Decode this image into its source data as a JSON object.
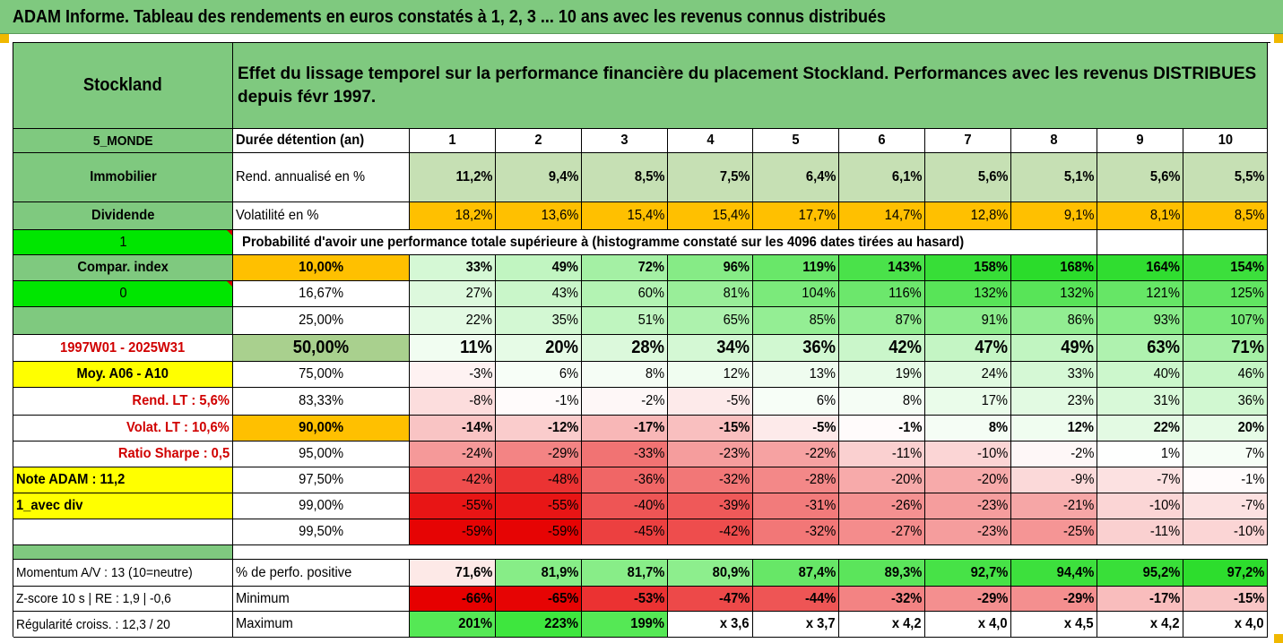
{
  "title": "ADAM Informe. Tableau des rendements en euros constatés à 1, 2, 3 ... 10 ans avec les revenus connus distribués",
  "header": {
    "name": "Stockland",
    "description": "Effet du lissage temporel sur la performance financière du placement Stockland. Performances avec les revenus DISTRIBUES depuis févr 1997."
  },
  "left": {
    "region": "5_MONDE",
    "sector": "Immobilier",
    "dividend": "Dividende",
    "flag1": "1",
    "compar_index": "Compar. index",
    "flag0": "0",
    "period": "1997W01 - 2025W31",
    "moy": "Moy. A06 - A10",
    "rend_lt": "Rend. LT :   5,6%",
    "volat_lt": "Volat. LT :   10,6%",
    "sharpe": "Ratio Sharpe :   0,5",
    "note": "Note ADAM : 11,2",
    "avec_div": "1_avec div",
    "momentum": "Momentum A/V : 13 (10=neutre)",
    "zscore": "Z-score 10 s  | RE : 1,9 | -0,6",
    "regularite": "Régularité croiss. : 12,3 / 20"
  },
  "labels": {
    "duree": "Durée détention (an)",
    "rend": "Rend. annualisé en %",
    "volat": "Volatilité en %",
    "proba": "Probabilité d'avoir une performance totale supérieure à (histogramme constaté sur les 4096 dates tirées au hasard)",
    "perfo_pos": "% de perfo. positive",
    "minimum": "Minimum",
    "maximum": "Maximum"
  },
  "years": [
    "1",
    "2",
    "3",
    "4",
    "5",
    "6",
    "7",
    "8",
    "9",
    "10"
  ],
  "rend": [
    "11,2%",
    "9,4%",
    "8,5%",
    "7,5%",
    "6,4%",
    "6,1%",
    "5,6%",
    "5,1%",
    "5,6%",
    "5,5%"
  ],
  "volat": [
    "18,2%",
    "13,6%",
    "15,4%",
    "15,4%",
    "17,7%",
    "14,7%",
    "12,8%",
    "9,1%",
    "8,1%",
    "8,5%"
  ],
  "quantiles": [
    {
      "label": "10,00%",
      "values": [
        "33%",
        "49%",
        "72%",
        "96%",
        "119%",
        "143%",
        "158%",
        "168%",
        "164%",
        "154%"
      ]
    },
    {
      "label": "16,67%",
      "values": [
        "27%",
        "43%",
        "60%",
        "81%",
        "104%",
        "116%",
        "132%",
        "132%",
        "121%",
        "125%"
      ]
    },
    {
      "label": "25,00%",
      "values": [
        "22%",
        "35%",
        "51%",
        "65%",
        "85%",
        "87%",
        "91%",
        "86%",
        "93%",
        "107%"
      ]
    },
    {
      "label": "50,00%",
      "values": [
        "11%",
        "20%",
        "28%",
        "34%",
        "36%",
        "42%",
        "47%",
        "49%",
        "63%",
        "71%"
      ]
    },
    {
      "label": "75,00%",
      "values": [
        "-3%",
        "6%",
        "8%",
        "12%",
        "13%",
        "19%",
        "24%",
        "33%",
        "40%",
        "46%"
      ]
    },
    {
      "label": "83,33%",
      "values": [
        "-8%",
        "-1%",
        "-2%",
        "-5%",
        "6%",
        "8%",
        "17%",
        "23%",
        "31%",
        "36%"
      ]
    },
    {
      "label": "90,00%",
      "values": [
        "-14%",
        "-12%",
        "-17%",
        "-15%",
        "-5%",
        "-1%",
        "8%",
        "12%",
        "22%",
        "20%"
      ]
    },
    {
      "label": "95,00%",
      "values": [
        "-24%",
        "-29%",
        "-33%",
        "-23%",
        "-22%",
        "-11%",
        "-10%",
        "-2%",
        "1%",
        "7%"
      ]
    },
    {
      "label": "97,50%",
      "values": [
        "-42%",
        "-48%",
        "-36%",
        "-32%",
        "-28%",
        "-20%",
        "-20%",
        "-9%",
        "-7%",
        "-1%"
      ]
    },
    {
      "label": "99,00%",
      "values": [
        "-55%",
        "-55%",
        "-40%",
        "-39%",
        "-31%",
        "-26%",
        "-23%",
        "-21%",
        "-10%",
        "-7%"
      ]
    },
    {
      "label": "99,50%",
      "values": [
        "-59%",
        "-59%",
        "-45%",
        "-42%",
        "-32%",
        "-27%",
        "-23%",
        "-25%",
        "-11%",
        "-10%"
      ]
    }
  ],
  "perfo_pos": [
    "71,6%",
    "81,9%",
    "81,7%",
    "80,9%",
    "87,4%",
    "89,3%",
    "92,7%",
    "94,4%",
    "95,2%",
    "97,2%"
  ],
  "minimum": [
    "-66%",
    "-65%",
    "-53%",
    "-47%",
    "-44%",
    "-32%",
    "-29%",
    "-29%",
    "-17%",
    "-15%"
  ],
  "maximum": [
    "201%",
    "223%",
    "199%",
    "x 3,6",
    "x 3,7",
    "x 4,2",
    "x 4,0",
    "x 4,5",
    "x 4,2",
    "x 4,0"
  ],
  "colors": {
    "header_green": "#7fc97f",
    "light_green": "#c6e0b4",
    "orange": "#ffc000",
    "yellow": "#ffff00",
    "lime": "#00e600",
    "red_text": "#d00000"
  }
}
